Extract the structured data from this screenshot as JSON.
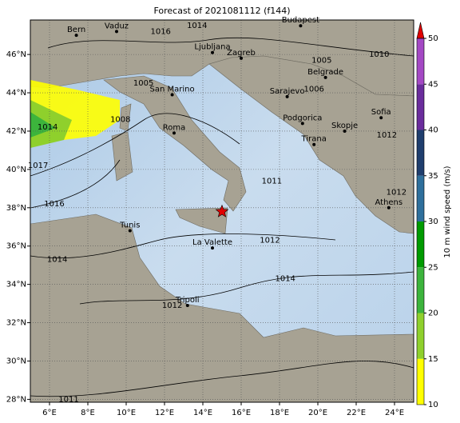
{
  "chart_data": {
    "type": "map",
    "title": "Forecast of 2021081112 (f144)",
    "xlim": [
      5,
      25
    ],
    "ylim": [
      27.85,
      47.8
    ],
    "xticks": [
      {
        "value": 6,
        "label": "6°E"
      },
      {
        "value": 8,
        "label": "8°E"
      },
      {
        "value": 10,
        "label": "10°E"
      },
      {
        "value": 12,
        "label": "12°E"
      },
      {
        "value": 14,
        "label": "14°E"
      },
      {
        "value": 16,
        "label": "16°E"
      },
      {
        "value": 18,
        "label": "18°E"
      },
      {
        "value": 20,
        "label": "20°E"
      },
      {
        "value": 22,
        "label": "22°E"
      },
      {
        "value": 24,
        "label": "24°E"
      }
    ],
    "yticks": [
      {
        "value": 28,
        "label": "28°N"
      },
      {
        "value": 30,
        "label": "30°N"
      },
      {
        "value": 32,
        "label": "32°N"
      },
      {
        "value": 34,
        "label": "34°N"
      },
      {
        "value": 36,
        "label": "36°N"
      },
      {
        "value": 38,
        "label": "38°N"
      },
      {
        "value": 40,
        "label": "40°N"
      },
      {
        "value": 42,
        "label": "42°N"
      },
      {
        "value": 44,
        "label": "44°N"
      },
      {
        "value": 46,
        "label": "46°N"
      }
    ],
    "grid": true,
    "cities": [
      {
        "name": "Bern",
        "lon": 7.4,
        "lat": 47.0
      },
      {
        "name": "Vaduz",
        "lon": 9.5,
        "lat": 47.2
      },
      {
        "name": "Budapest",
        "lon": 19.1,
        "lat": 47.5
      },
      {
        "name": "Ljubljana",
        "lon": 14.5,
        "lat": 46.1
      },
      {
        "name": "Zagreb",
        "lon": 16.0,
        "lat": 45.8
      },
      {
        "name": "Belgrade",
        "lon": 20.4,
        "lat": 44.8
      },
      {
        "name": "San Marino",
        "lon": 12.4,
        "lat": 43.9
      },
      {
        "name": "Sarajevo",
        "lon": 18.4,
        "lat": 43.8
      },
      {
        "name": "Roma",
        "lon": 12.5,
        "lat": 41.9
      },
      {
        "name": "Podgorica",
        "lon": 19.2,
        "lat": 42.4
      },
      {
        "name": "Skopje",
        "lon": 21.4,
        "lat": 42.0
      },
      {
        "name": "Tirana",
        "lon": 19.8,
        "lat": 41.3
      },
      {
        "name": "Sofia",
        "lon": 23.3,
        "lat": 42.7
      },
      {
        "name": "Athens",
        "lon": 23.7,
        "lat": 38.0
      },
      {
        "name": "Tunis",
        "lon": 10.2,
        "lat": 36.8
      },
      {
        "name": "La Valette",
        "lon": 14.5,
        "lat": 35.9
      },
      {
        "name": "Tripoli",
        "lon": 13.2,
        "lat": 32.9
      }
    ],
    "marker": {
      "lon": 15.0,
      "lat": 37.8
    },
    "isobar_labels": [
      {
        "value": 1016,
        "lon": 11.8,
        "lat": 47.2
      },
      {
        "value": 1014,
        "lon": 13.7,
        "lat": 47.5
      },
      {
        "value": 1005,
        "lon": 10.9,
        "lat": 44.5
      },
      {
        "value": 1005,
        "lon": 20.2,
        "lat": 45.7
      },
      {
        "value": 1010,
        "lon": 23.2,
        "lat": 46.0
      },
      {
        "value": 1006,
        "lon": 19.8,
        "lat": 44.2
      },
      {
        "value": 1008,
        "lon": 9.7,
        "lat": 42.6
      },
      {
        "value": 1014,
        "lon": 5.9,
        "lat": 42.2
      },
      {
        "value": 1017,
        "lon": 5.4,
        "lat": 40.2
      },
      {
        "value": 1016,
        "lon": 6.25,
        "lat": 38.2
      },
      {
        "value": 1011,
        "lon": 17.6,
        "lat": 39.4
      },
      {
        "value": 1012,
        "lon": 17.5,
        "lat": 36.3
      },
      {
        "value": 1014,
        "lon": 18.3,
        "lat": 34.3
      },
      {
        "value": 1014,
        "lon": 6.4,
        "lat": 35.3
      },
      {
        "value": 1012,
        "lon": 12.4,
        "lat": 32.9
      },
      {
        "value": 1011,
        "lon": 7.0,
        "lat": 28.0
      },
      {
        "value": 1012,
        "lon": 24.1,
        "lat": 38.8
      },
      {
        "value": 1012,
        "lon": 23.6,
        "lat": 41.8
      }
    ],
    "colorbar": {
      "label": "10 m wind speed (m/s)",
      "ticks": [
        10,
        15,
        20,
        25,
        30,
        35,
        40,
        45,
        50
      ],
      "colors": [
        "#ffff00",
        "#8fd02c",
        "#3cb43c",
        "#009a00",
        "#2e6f9c",
        "#1f3e6e",
        "#6a2c9c",
        "#a448c4"
      ],
      "extend_color": "#e00000"
    }
  }
}
